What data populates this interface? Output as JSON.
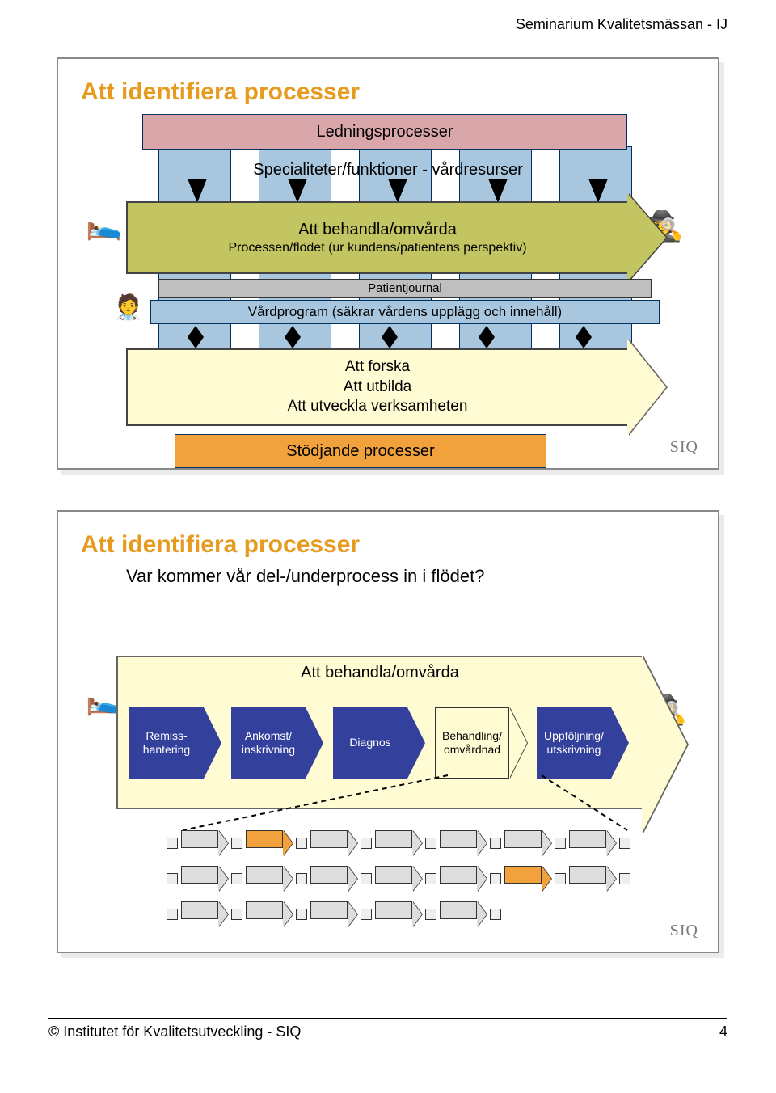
{
  "header": {
    "right_text": "Seminarium Kvalitetsmässan - IJ"
  },
  "footer": {
    "left_text": "© Institutet för Kvalitetsutveckling - SIQ",
    "page_number": "4"
  },
  "siq_logo_text": "SIQ",
  "colors": {
    "title_color": "#e69b1f",
    "pink": "#d9a6aa",
    "blue_col": "#a8c7de",
    "olive": "#c3c462",
    "grey_bar": "#bfbfbf",
    "light_yellow": "#fffbd2",
    "orange": "#f2a23c",
    "navy": "#34419c",
    "border_dark": "#003060"
  },
  "slide1": {
    "title": "Att identifiera processer",
    "pink_bar": "Ledningsprocesser",
    "spec_label": "Specialiteter/funktioner - vårdresurser",
    "olive_line1": "Att behandla/omvårda",
    "olive_line2": "Processen/flödet (ur kundens/patientens perspektiv)",
    "patientjournal": "Patientjournal",
    "vardprogram": "Vårdprogram (säkrar vårdens upplägg och innehåll)",
    "yellow_line1": "Att forska",
    "yellow_line2": "Att utbilda",
    "yellow_line3": "Att utveckla verksamheten",
    "orange_bar": "Stödjande processer",
    "num_background_columns": 5,
    "icons": {
      "patient": "🛌",
      "nurse": "🧑‍⚕️",
      "doctor": "🕵️"
    }
  },
  "slide2": {
    "title": "Att identifiera processer",
    "question": "Var kommer vår del-/underprocess in i flödet?",
    "flow_title": "Att behandla/omvårda",
    "steps": [
      {
        "label": "Remiss-\nhantering",
        "highlight": false
      },
      {
        "label": "Ankomst/\ninskrivning",
        "highlight": false
      },
      {
        "label": "Diagnos",
        "highlight": false
      },
      {
        "label": "Behandling/\nomvårdnad",
        "highlight": true
      },
      {
        "label": "Uppföljning/\nutskrivning",
        "highlight": false
      }
    ],
    "mini_rows": [
      {
        "arrows": 7,
        "highlight_index": 1
      },
      {
        "arrows": 7,
        "highlight_index": 5
      },
      {
        "arrows": 5,
        "highlight_index": -1
      }
    ],
    "icons": {
      "patient": "🛌",
      "doctor": "🕵️"
    }
  }
}
